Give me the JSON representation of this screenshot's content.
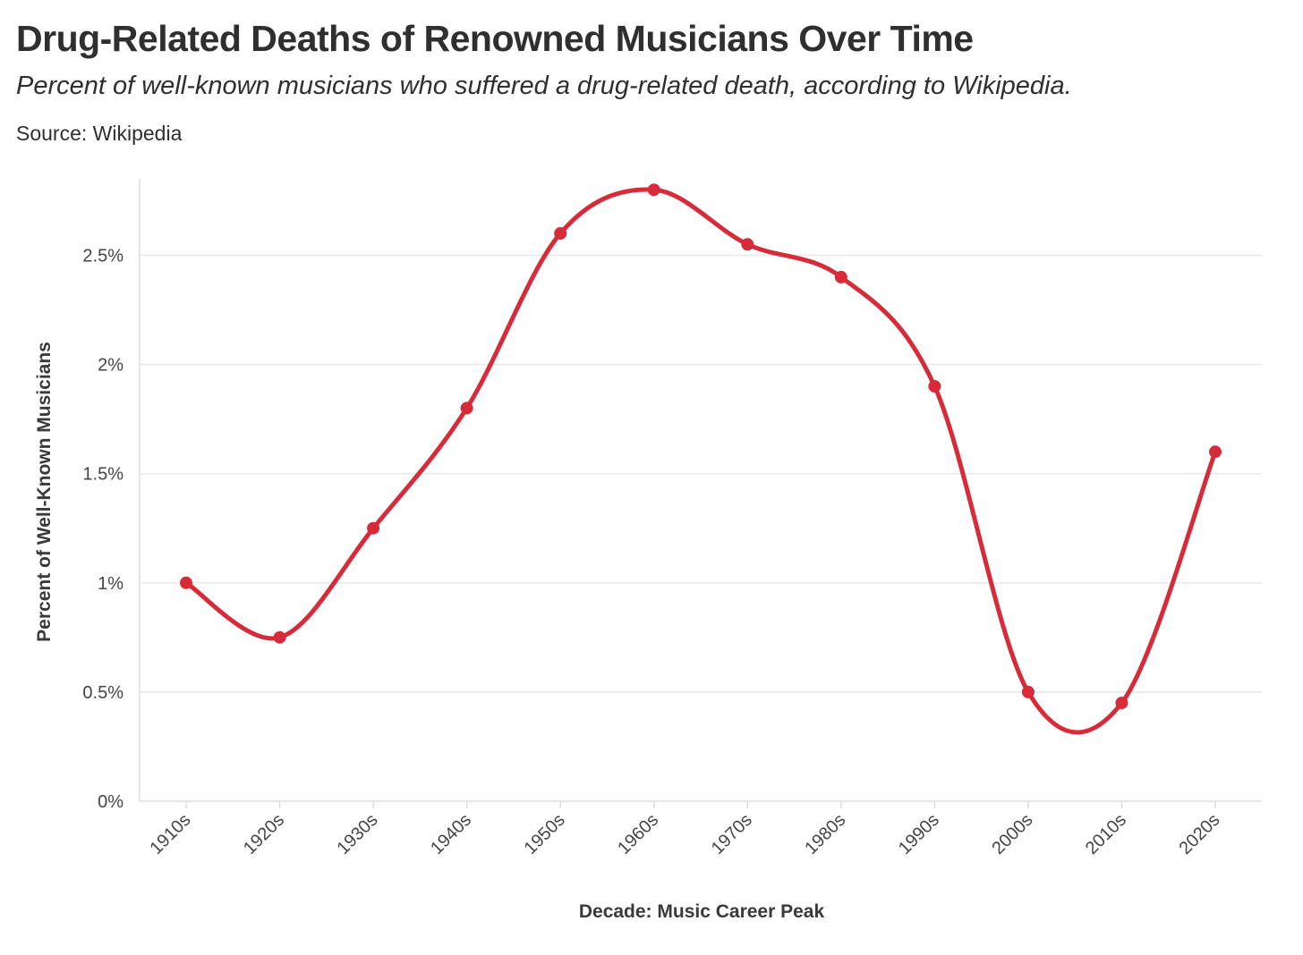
{
  "header": {
    "title": "Drug-Related Deaths of Renowned Musicians Over Time",
    "subtitle": "Percent of well-known musicians who suffered a drug-related death, according to Wikipedia.",
    "source": "Source: Wikipedia"
  },
  "chart_data": {
    "type": "line",
    "title": "Drug-Related Deaths of Renowned Musicians Over Time",
    "subtitle": "Percent of well-known musicians who suffered a drug-related death, according to Wikipedia.",
    "xlabel": "Decade: Music Career Peak",
    "ylabel": "Percent of Well-Known Musicians",
    "categories": [
      "1910s",
      "1920s",
      "1930s",
      "1940s",
      "1950s",
      "1960s",
      "1970s",
      "1980s",
      "1990s",
      "2000s",
      "2010s",
      "2020s"
    ],
    "series": [
      {
        "values": [
          1.0,
          0.75,
          1.25,
          1.8,
          2.6,
          2.8,
          2.55,
          2.4,
          1.9,
          0.5,
          0.45,
          1.6
        ]
      }
    ],
    "ylim": [
      0,
      2.85
    ],
    "yticks": [
      0,
      0.5,
      1,
      1.5,
      2,
      2.5
    ],
    "ytick_labels": [
      "0%",
      "0.5%",
      "1%",
      "1.5%",
      "2%",
      "2.5%"
    ],
    "grid": true,
    "smooth": true,
    "line_color": "#d82b3a",
    "grid_color": "#e8e8e8",
    "axis_color": "#dddddd"
  }
}
